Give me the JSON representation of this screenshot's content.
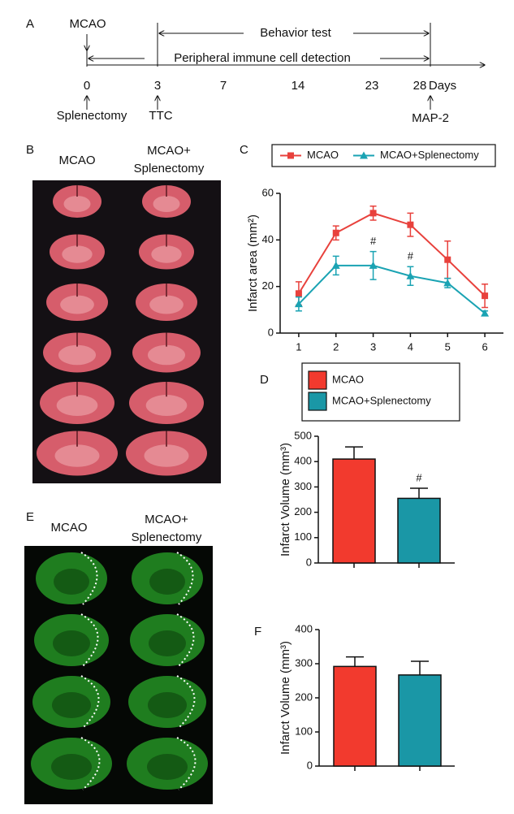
{
  "panel_a": {
    "label": "A",
    "event_top": "MCAO",
    "behavior": "Behavior test",
    "detection": "Peripheral immune cell detection",
    "ticks": [
      0,
      3,
      7,
      14,
      23,
      28
    ],
    "unit": "Days",
    "events_bottom": [
      "Splenectomy",
      "TTC",
      "MAP-2"
    ]
  },
  "panel_b": {
    "label": "B",
    "columns": [
      "MCAO",
      [
        "MCAO+",
        "Splenectomy"
      ]
    ]
  },
  "panel_e": {
    "label": "E",
    "columns": [
      "MCAO",
      [
        "MCAO+",
        "Splenectomy"
      ]
    ]
  },
  "chart_data": [
    {
      "panel_label": "C",
      "type": "line",
      "ylabel": "Infarct area (mm²)",
      "x": [
        1,
        2,
        3,
        4,
        5,
        6
      ],
      "xlim": [
        0.5,
        6.5
      ],
      "xticks": [
        1,
        2,
        3,
        4,
        5,
        6
      ],
      "ylim": [
        0,
        60
      ],
      "yticks": [
        0,
        20,
        40,
        60
      ],
      "series": [
        {
          "name": "MCAO",
          "color": "#e8413c",
          "marker": "square",
          "values": [
            17,
            43,
            51.5,
            46.5,
            31.5,
            16
          ],
          "errors": [
            5,
            3,
            3,
            5,
            8,
            5
          ]
        },
        {
          "name": "MCAO+Splenectomy",
          "color": "#1aa3b3",
          "marker": "triangle",
          "values": [
            12.5,
            29,
            29,
            24.5,
            21.5,
            8.5
          ],
          "errors": [
            3,
            4,
            6,
            4,
            2,
            1
          ],
          "annotations": [
            null,
            null,
            "#",
            "#",
            null,
            null
          ]
        }
      ]
    },
    {
      "panel_label": "D",
      "type": "bar",
      "ylabel": "Infarct Volume (mm³)",
      "ylim": [
        0,
        500
      ],
      "yticks": [
        0,
        100,
        200,
        300,
        400,
        500
      ],
      "series": [
        {
          "name": "MCAO",
          "color": "#f23a2e",
          "values": [
            410
          ],
          "errors": [
            48
          ]
        },
        {
          "name": "MCAO+Splenectomy",
          "color": "#1a97a6",
          "values": [
            255
          ],
          "errors": [
            40
          ],
          "annotations": [
            "#"
          ]
        }
      ]
    },
    {
      "panel_label": "F",
      "type": "bar",
      "ylabel": "Infarct Volume (mm³)",
      "ylim": [
        0,
        400
      ],
      "yticks": [
        0,
        100,
        200,
        300,
        400
      ],
      "values": [
        292,
        267
      ],
      "errors": [
        28,
        40
      ],
      "colors": [
        "#f23a2e",
        "#1a97a6"
      ]
    }
  ]
}
